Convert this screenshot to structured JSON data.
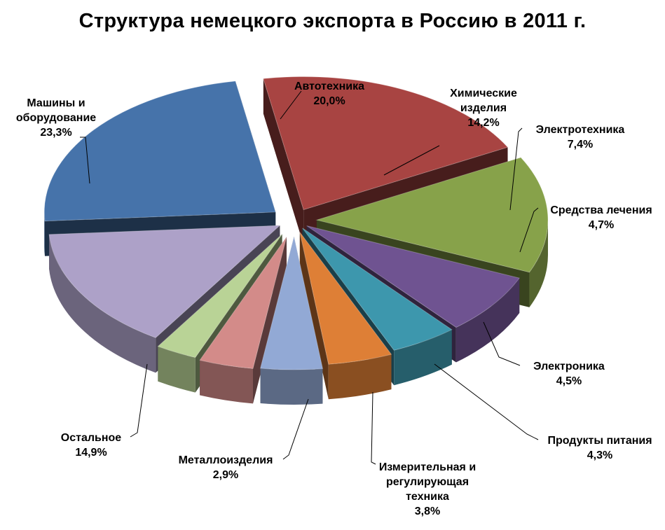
{
  "chart_data": {
    "type": "pie",
    "title": "Структура  немецкого экспорта в Россию в 2011 г.",
    "categories": [
      "Автотехника",
      "Химические изделия",
      "Электротехника",
      "Средства лечения",
      "Электроника",
      "Продукты питания",
      "Измерительная и регулирующая техника",
      "Металлоизделия",
      "Остальное",
      "Машины и оборудование"
    ],
    "values": [
      20.0,
      14.2,
      7.4,
      4.7,
      4.5,
      4.3,
      3.8,
      2.9,
      14.9,
      23.3
    ],
    "value_labels": [
      "20,0%",
      "14,2%",
      "7,4%",
      "4,7%",
      "4,5%",
      "4,3%",
      "3,8%",
      "2,9%",
      "14,9%",
      "23,3%"
    ],
    "label_lines": [
      [
        "Автотехника"
      ],
      [
        "Химические",
        "изделия"
      ],
      [
        "Электротехника"
      ],
      [
        "Средства лечения"
      ],
      [
        "Электроника"
      ],
      [
        "Продукты питания"
      ],
      [
        "Измерительная и",
        "регулирующая",
        "техника"
      ],
      [
        "Металлоизделия"
      ],
      [
        "Остальное"
      ],
      [
        "Машины и",
        "оборудование"
      ]
    ],
    "colors": [
      "#a84442",
      "#87a24a",
      "#6f5391",
      "#3d97ad",
      "#de7f36",
      "#92a9d5",
      "#d38b89",
      "#b9d396",
      "#ada1c8",
      "#4673aa"
    ],
    "style": "exploded-3d-pie"
  }
}
